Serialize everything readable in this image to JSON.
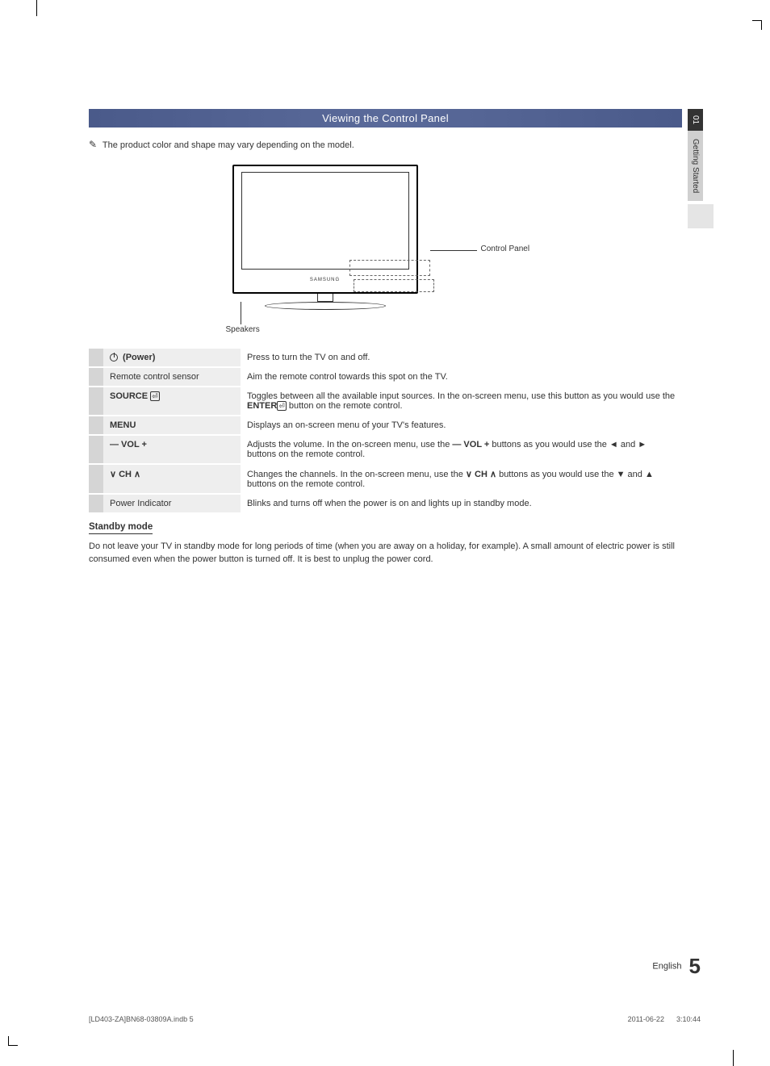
{
  "side_tab": {
    "num": "01",
    "label": "Getting Started"
  },
  "header": "Viewing the Control Panel",
  "note_icon": "✎",
  "note": "The product color and shape may vary depending on the model.",
  "diagram": {
    "brand": "SAMSUNG",
    "control_panel_label": "Control Panel",
    "speakers_label": "Speakers"
  },
  "rows": [
    {
      "label_pre_icon": "power",
      "label": "(Power)",
      "desc": "Press to turn the TV on and off."
    },
    {
      "label": "Remote control sensor",
      "desc": "Aim the remote control towards this spot on the TV."
    },
    {
      "label": "SOURCE",
      "label_post_icon": "enter",
      "desc_parts": [
        "Toggles between all the available input sources. In the on-screen menu, use this button as you would use the ",
        {
          "b": "ENTER"
        },
        {
          "icon": "enter"
        },
        " button on the remote control."
      ]
    },
    {
      "label": "MENU",
      "desc": "Displays an on-screen menu of your TV's features."
    },
    {
      "label": "— VOL +",
      "desc_parts": [
        "Adjusts the volume. In the on-screen menu, use the ",
        {
          "b": "— VOL +"
        },
        " buttons as you would use the ◄ and ► buttons on the remote control."
      ]
    },
    {
      "label": "∨ CH ∧",
      "desc_parts": [
        "Changes the channels. In the on-screen menu, use the ",
        {
          "b": "∨ CH ∧"
        },
        " buttons as you would use the ▼ and ▲ buttons on the remote control."
      ]
    },
    {
      "label": "Power Indicator",
      "desc": "Blinks and turns off when the power is on and lights up in standby mode."
    }
  ],
  "standby": {
    "heading": "Standby mode",
    "body": "Do not leave your TV in standby mode for long periods of time (when you are away on a holiday, for example). A small amount of electric power is still consumed even when the power button is turned off. It is best to unplug the power cord."
  },
  "footer": {
    "lang": "English",
    "page_num": "5",
    "doc": "[LD403-ZA]BN68-03809A.indb   5",
    "timestamp": "2011-06-22      3:10:44"
  },
  "colors": {
    "header_bg": "#4a5a8a",
    "row_leftbar": "#d5d5d5",
    "row_label_bg": "#eeeeee",
    "tab_dark": "#333333",
    "tab_light": "#d0d0d0"
  }
}
